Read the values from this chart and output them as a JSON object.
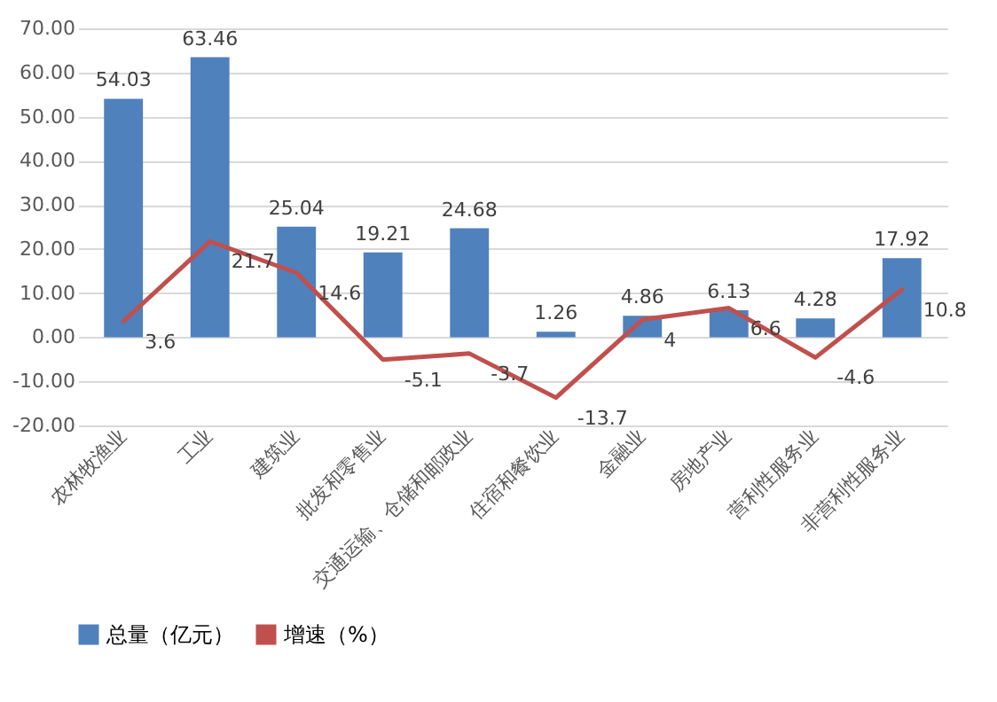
{
  "chart_data": {
    "type": "bar",
    "categories": [
      "农林牧渔业",
      "工业",
      "建筑业",
      "批发和零售业",
      "交通运输、仓储和邮政业",
      "住宿和餐饮业",
      "金融业",
      "房地产业",
      "营利性服务业",
      "非营利性服务业"
    ],
    "series": [
      {
        "name": "总量（亿元）",
        "color": "#4f81bd",
        "values": [
          54.03,
          63.46,
          25.04,
          19.21,
          24.68,
          1.26,
          4.86,
          6.13,
          4.28,
          17.92
        ]
      },
      {
        "name": "增速（%）",
        "type": "line",
        "color": "#c0504d",
        "values": [
          3.6,
          21.7,
          14.6,
          -5.1,
          -3.7,
          -13.7,
          4,
          6.6,
          -4.6,
          10.8
        ]
      }
    ],
    "ylim": [
      -20,
      70
    ],
    "yticks": [
      {
        "value": -20,
        "label": "-20.00"
      },
      {
        "value": -10,
        "label": "-10.00"
      },
      {
        "value": 0,
        "label": "0.00"
      },
      {
        "value": 10,
        "label": "10.00"
      },
      {
        "value": 20,
        "label": "20.00"
      },
      {
        "value": 30,
        "label": "30.00"
      },
      {
        "value": 40,
        "label": "40.00"
      },
      {
        "value": 50,
        "label": "50.00"
      },
      {
        "value": 60,
        "label": "60.00"
      },
      {
        "value": 70,
        "label": "70.00"
      }
    ],
    "grid": "y",
    "legend": "bottom",
    "data_labels": true,
    "marker": "none",
    "line_style": "solid"
  }
}
